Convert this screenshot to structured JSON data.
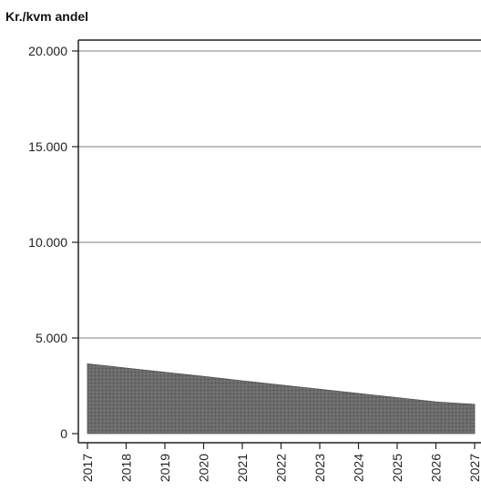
{
  "chart_data": {
    "type": "area",
    "title": "Kr./kvm andel",
    "xlabel": "",
    "ylabel": "",
    "x": [
      "2017",
      "2018",
      "2019",
      "2020",
      "2021",
      "2022",
      "2023",
      "2024",
      "2025",
      "2026",
      "2027"
    ],
    "y_ticks": [
      0,
      5000,
      10000,
      15000,
      20000
    ],
    "y_tick_labels": [
      "0",
      "5.000",
      "10.000",
      "15.000",
      "20.000"
    ],
    "ylim": [
      0,
      20000
    ],
    "series": [
      {
        "values": [
          3650,
          3430,
          3210,
          2990,
          2760,
          2540,
          2320,
          2100,
          1880,
          1660,
          1530
        ]
      }
    ],
    "grid": true,
    "colors": {
      "area": "#6b6b6b",
      "grid": "#9a9a9a",
      "axis": "#222222"
    }
  }
}
